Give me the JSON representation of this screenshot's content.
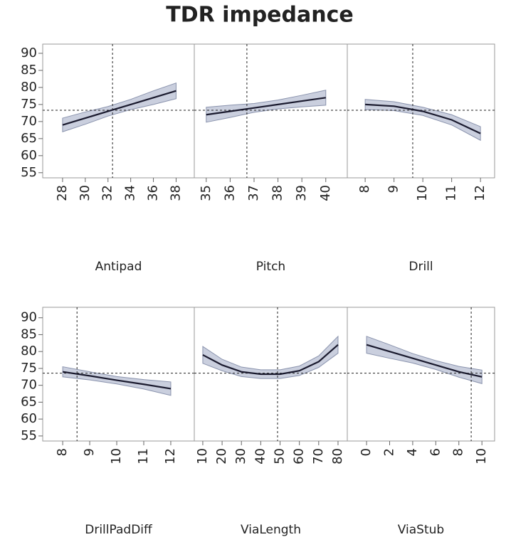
{
  "title": "TDR impedance",
  "chart_data": [
    {
      "type": "line",
      "xlabel": "Antipad",
      "x": [
        28,
        30,
        32,
        34,
        36,
        38
      ],
      "values": [
        69,
        71,
        73,
        75,
        77,
        79
      ],
      "lower": [
        67,
        69.2,
        71.6,
        73.5,
        75,
        76.7
      ],
      "upper": [
        71,
        72.8,
        74.4,
        76.5,
        79,
        81.3
      ],
      "xlim": [
        26.25,
        39.6
      ],
      "xticks": [
        28,
        30,
        32,
        34,
        36,
        38
      ],
      "ylim": [
        53.5,
        92.7
      ],
      "yticks": [
        55,
        60,
        65,
        70,
        75,
        80,
        85,
        90
      ],
      "hline": 73.3,
      "vline": 32.4
    },
    {
      "type": "line",
      "xlabel": "Pitch",
      "x": [
        35,
        36,
        37,
        38,
        39,
        40
      ],
      "values": [
        72,
        73,
        74,
        75,
        76,
        77
      ],
      "lower": [
        69.8,
        71.2,
        72.7,
        73.7,
        74.3,
        74.8
      ],
      "upper": [
        74.2,
        74.8,
        75.3,
        76.3,
        77.7,
        79.2
      ],
      "xlim": [
        34.5,
        40.9
      ],
      "xticks": [
        35,
        36,
        37,
        38,
        39,
        40
      ],
      "ylim": [
        53.5,
        92.7
      ],
      "hline": 73.3,
      "vline": 36.7
    },
    {
      "type": "line",
      "xlabel": "Drill",
      "x": [
        8,
        9,
        10,
        11,
        12
      ],
      "values": [
        75,
        74.5,
        73,
        70.5,
        66.5
      ],
      "lower": [
        73.5,
        73.2,
        71.8,
        69,
        64.5
      ],
      "upper": [
        76.5,
        75.8,
        74.2,
        72,
        68.5
      ],
      "xlim": [
        7.38,
        12.49
      ],
      "xticks": [
        8,
        9,
        10,
        11,
        12
      ],
      "ylim": [
        53.5,
        92.7
      ],
      "hline": 73.3,
      "vline": 9.65
    },
    {
      "type": "line",
      "xlabel": "DrillPadDiff",
      "x": [
        8,
        9,
        10,
        11,
        12
      ],
      "values": [
        74,
        72.8,
        71.5,
        70.3,
        69
      ],
      "lower": [
        72.5,
        71.6,
        70.4,
        68.9,
        67
      ],
      "upper": [
        75.5,
        74,
        72.6,
        71.7,
        71
      ],
      "xlim": [
        7.26,
        12.87
      ],
      "xticks": [
        8,
        9,
        10,
        11,
        12
      ],
      "ylim": [
        53.5,
        93.1
      ],
      "yticks": [
        55,
        60,
        65,
        70,
        75,
        80,
        85,
        90
      ],
      "hline": 73.6,
      "vline": 8.53
    },
    {
      "type": "line",
      "xlabel": "ViaLength",
      "x": [
        10,
        20,
        30,
        40,
        50,
        60,
        70,
        80
      ],
      "values": [
        79,
        76,
        74,
        73.3,
        73.3,
        74.3,
        77,
        82
      ],
      "lower": [
        76.5,
        74.3,
        72.6,
        72,
        72,
        72.9,
        75.3,
        79.5
      ],
      "upper": [
        81.5,
        77.7,
        75.4,
        74.6,
        74.6,
        75.7,
        78.7,
        84.5
      ],
      "xlim": [
        5.6,
        84.8
      ],
      "xticks": [
        10,
        20,
        30,
        40,
        50,
        60,
        70,
        80
      ],
      "ylim": [
        53.5,
        93.1
      ],
      "hline": 73.6,
      "vline": 48.7
    },
    {
      "type": "line",
      "xlabel": "ViaStub",
      "x": [
        0,
        2,
        4,
        6,
        8,
        10
      ],
      "values": [
        82,
        80,
        78,
        76,
        74,
        72.5
      ],
      "lower": [
        79.5,
        78,
        76.6,
        74.7,
        72.4,
        70.5
      ],
      "upper": [
        84.5,
        82,
        79.4,
        77.3,
        75.6,
        74.5
      ],
      "xlim": [
        -1.67,
        11.1
      ],
      "xticks": [
        0,
        2,
        4,
        6,
        8,
        10
      ],
      "ylim": [
        53.5,
        93.1
      ],
      "hline": 73.6,
      "vline": 9.07
    }
  ]
}
